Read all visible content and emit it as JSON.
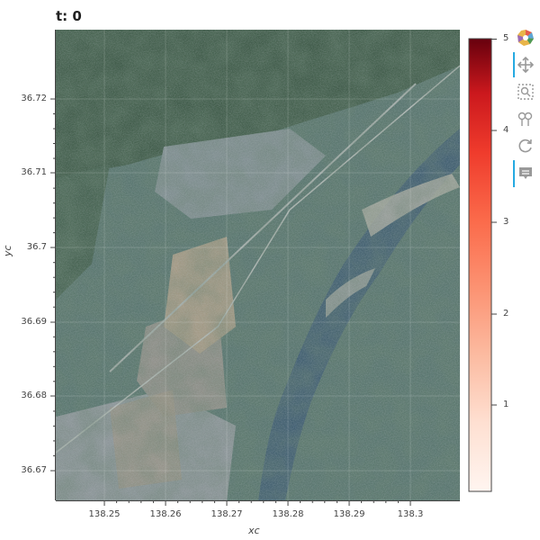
{
  "title": "t: 0",
  "xlabel": "xc",
  "ylabel": "yc",
  "x_ticks": [
    "138.25",
    "138.26",
    "138.27",
    "138.28",
    "138.29",
    "138.3"
  ],
  "y_ticks": [
    "36.72",
    "36.71",
    "36.7",
    "36.69",
    "36.68",
    "36.67"
  ],
  "colorbar": {
    "ticks": [
      "5",
      "4",
      "3",
      "2",
      "1"
    ],
    "range": [
      0,
      5
    ],
    "colormap": "Reds",
    "low_color": "#fff5f0",
    "high_color": "#67000d"
  },
  "toolbar": {
    "tools": [
      {
        "name": "bokeh-logo-icon",
        "active": false
      },
      {
        "name": "pan-icon",
        "active": true
      },
      {
        "name": "box-zoom-icon",
        "active": false
      },
      {
        "name": "wheel-zoom-icon",
        "active": false
      },
      {
        "name": "reset-icon",
        "active": false
      },
      {
        "name": "hover-icon",
        "active": true
      }
    ]
  },
  "colors": {
    "axis": "#444444",
    "toolbar_active": "#26aae1",
    "river": "#2e4e66",
    "forest": "#2c4a35"
  }
}
